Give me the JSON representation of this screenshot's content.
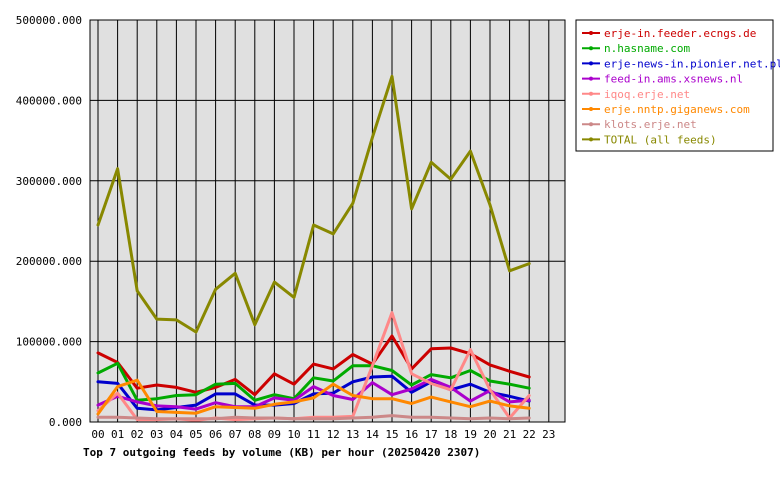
{
  "chart_data": {
    "type": "line",
    "title": "Top 7 outgoing feeds by volume (KB) per hour (20250420 2307)",
    "xlabel": "",
    "ylabel": "",
    "ylim": [
      0,
      500000
    ],
    "y_ticks": [
      "0.000",
      "100000.000",
      "200000.000",
      "300000.000",
      "400000.000",
      "500000.000"
    ],
    "y_tick_values": [
      0,
      100000,
      200000,
      300000,
      400000,
      500000
    ],
    "x_ticks": [
      "00",
      "01",
      "02",
      "03",
      "04",
      "05",
      "06",
      "07",
      "08",
      "09",
      "10",
      "11",
      "12",
      "13",
      "14",
      "15",
      "16",
      "17",
      "18",
      "19",
      "20",
      "21",
      "22",
      "23"
    ],
    "grid": true,
    "legend_position": "top-right",
    "series": [
      {
        "name": "erje-in.feeder.ecngs.de",
        "color": "#cc0000",
        "values": [
          86000,
          74000,
          42000,
          46000,
          43000,
          37000,
          43000,
          53000,
          34000,
          60000,
          47000,
          72000,
          66000,
          84000,
          72000,
          107000,
          66000,
          91000,
          92000,
          85000,
          71000,
          63000,
          56000
        ]
      },
      {
        "name": "n.hasname.com",
        "color": "#00aa00",
        "values": [
          61000,
          73000,
          27000,
          29000,
          33000,
          34000,
          47000,
          48000,
          27000,
          34000,
          29000,
          55000,
          51000,
          70000,
          70000,
          64000,
          46000,
          59000,
          55000,
          64000,
          51000,
          47000,
          42000
        ]
      },
      {
        "name": "erje-news-in.pionier.net.pl",
        "color": "#0000cc",
        "values": [
          50000,
          48000,
          17000,
          15000,
          18000,
          21000,
          35000,
          35000,
          21000,
          21000,
          23000,
          35000,
          36000,
          50000,
          56000,
          57000,
          37000,
          50000,
          40000,
          47000,
          37000,
          32000,
          26000
        ]
      },
      {
        "name": "feed-in.ams.xsnews.nl",
        "color": "#aa00cc",
        "values": [
          21000,
          32000,
          25000,
          20000,
          19000,
          16000,
          24000,
          19000,
          19000,
          30000,
          27000,
          44000,
          33000,
          28000,
          49000,
          34000,
          41000,
          53000,
          43000,
          26000,
          39000,
          25000,
          27000
        ]
      },
      {
        "name": "iqoq.erje.net",
        "color": "#ff8888",
        "values": [
          14000,
          36000,
          3000,
          3000,
          4000,
          2000,
          5000,
          3000,
          4000,
          5000,
          4000,
          6000,
          6000,
          7000,
          70000,
          136000,
          60000,
          48000,
          40000,
          90000,
          40000,
          5000,
          33000
        ]
      },
      {
        "name": "erje.nntp.giganews.com",
        "color": "#ff8800",
        "values": [
          10000,
          44000,
          52000,
          13000,
          12000,
          11000,
          19000,
          18000,
          17000,
          22000,
          25000,
          30000,
          47000,
          33000,
          29000,
          29000,
          23000,
          31000,
          25000,
          19000,
          26000,
          20000,
          17000
        ]
      },
      {
        "name": "klots.erje.net",
        "color": "#cc8888",
        "values": [
          6000,
          6000,
          5000,
          4000,
          4000,
          4000,
          4000,
          6000,
          5000,
          5000,
          4000,
          4000,
          4000,
          5000,
          6000,
          8000,
          6000,
          6000,
          5000,
          4000,
          5000,
          4000,
          5000
        ]
      },
      {
        "name": "TOTAL (all feeds)",
        "color": "#888800",
        "values": [
          245000,
          315000,
          163000,
          128000,
          127000,
          112000,
          165000,
          185000,
          121000,
          174000,
          155000,
          245000,
          234000,
          272000,
          354000,
          430000,
          265000,
          323000,
          302000,
          337000,
          270000,
          188000,
          197000
        ]
      }
    ]
  }
}
